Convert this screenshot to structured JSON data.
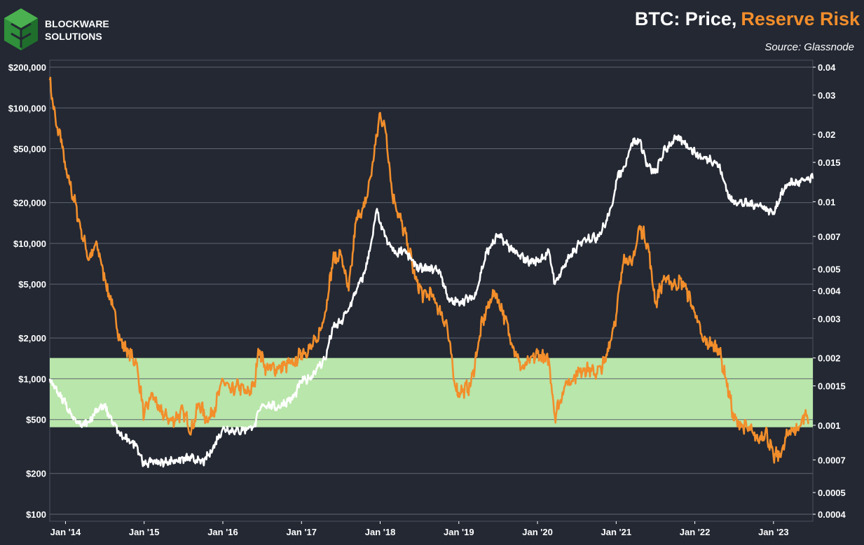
{
  "logo": {
    "line1": "BLOCKWARE",
    "line2": "SOLUTIONS"
  },
  "colors": {
    "background": "#232833",
    "grid": "#5f6571",
    "price": "#ffffff",
    "reserve_risk": "#f28e2b",
    "band": "#b9e6aa"
  },
  "chart_data": {
    "type": "line",
    "title_part1": "BTC: Price,",
    "title_part2": "Reserve Risk",
    "subtitle": "Source: Glassnode",
    "x_tick_labels": [
      "Jan '14",
      "Jan '15",
      "Jan '16",
      "Jan '17",
      "Jan '18",
      "Jan '19",
      "Jan '20",
      "Jan '21",
      "Jan '22",
      "Jan '23"
    ],
    "x_range": [
      2013.8,
      2023.5
    ],
    "left_axis": {
      "scale": "log",
      "range": [
        100,
        200000
      ],
      "ticks": [
        {
          "value": 200000,
          "label": "$200,000"
        },
        {
          "value": 100000,
          "label": "$100,000"
        },
        {
          "value": 50000,
          "label": "$50,000"
        },
        {
          "value": 20000,
          "label": "$20,000"
        },
        {
          "value": 10000,
          "label": "$10,000"
        },
        {
          "value": 5000,
          "label": "$5,000"
        },
        {
          "value": 2000,
          "label": "$2,000"
        },
        {
          "value": 1000,
          "label": "$1,000"
        },
        {
          "value": 500,
          "label": "$500"
        },
        {
          "value": 200,
          "label": "$200"
        },
        {
          "value": 100,
          "label": "$100"
        }
      ]
    },
    "right_axis": {
      "scale": "log",
      "range": [
        0.0004,
        0.04
      ],
      "ticks": [
        {
          "value": 0.04,
          "label": "0.04"
        },
        {
          "value": 0.03,
          "label": "0.03"
        },
        {
          "value": 0.02,
          "label": "0.02"
        },
        {
          "value": 0.015,
          "label": "0.015"
        },
        {
          "value": 0.01,
          "label": "0.01"
        },
        {
          "value": 0.007,
          "label": "0.007"
        },
        {
          "value": 0.005,
          "label": "0.005"
        },
        {
          "value": 0.004,
          "label": "0.004"
        },
        {
          "value": 0.003,
          "label": "0.003"
        },
        {
          "value": 0.002,
          "label": "0.002"
        },
        {
          "value": 0.0015,
          "label": "0.0015"
        },
        {
          "value": 0.001,
          "label": "0.001"
        },
        {
          "value": 0.0007,
          "label": "0.0007"
        },
        {
          "value": 0.0005,
          "label": "0.0005"
        },
        {
          "value": 0.0004,
          "label": "0.0004"
        }
      ]
    },
    "band": {
      "axis": "right",
      "low": 0.00098,
      "high": 0.002
    },
    "series": [
      {
        "key": "price",
        "axis": "left",
        "x": [
          2013.8,
          2013.9,
          2014.0,
          2014.1,
          2014.2,
          2014.3,
          2014.4,
          2014.5,
          2014.6,
          2014.7,
          2014.8,
          2014.9,
          2015.0,
          2015.1,
          2015.2,
          2015.4,
          2015.6,
          2015.75,
          2015.85,
          2016.0,
          2016.2,
          2016.4,
          2016.5,
          2016.7,
          2016.9,
          2017.0,
          2017.1,
          2017.2,
          2017.3,
          2017.4,
          2017.5,
          2017.6,
          2017.7,
          2017.8,
          2017.9,
          2017.96,
          2018.0,
          2018.1,
          2018.2,
          2018.3,
          2018.4,
          2018.5,
          2018.6,
          2018.75,
          2018.88,
          2019.0,
          2019.2,
          2019.35,
          2019.5,
          2019.6,
          2019.75,
          2019.9,
          2020.0,
          2020.15,
          2020.22,
          2020.35,
          2020.5,
          2020.6,
          2020.75,
          2020.85,
          2020.95,
          2021.0,
          2021.1,
          2021.2,
          2021.3,
          2021.4,
          2021.5,
          2021.6,
          2021.75,
          2021.85,
          2022.0,
          2022.1,
          2022.2,
          2022.3,
          2022.45,
          2022.55,
          2022.7,
          2022.85,
          2022.95,
          2023.0,
          2023.1,
          2023.2,
          2023.3,
          2023.4,
          2023.5
        ],
        "y": [
          1000,
          800,
          650,
          500,
          450,
          480,
          600,
          620,
          480,
          380,
          350,
          330,
          230,
          250,
          240,
          250,
          260,
          240,
          290,
          430,
          410,
          450,
          650,
          620,
          730,
          960,
          1000,
          1200,
          1400,
          2400,
          2600,
          3300,
          4500,
          6000,
          11000,
          18000,
          14000,
          10000,
          8500,
          9000,
          7500,
          6500,
          6500,
          6400,
          3700,
          3700,
          4000,
          8500,
          11500,
          10000,
          8200,
          7300,
          7500,
          8500,
          5000,
          7000,
          9300,
          11000,
          11000,
          13500,
          19000,
          29000,
          37000,
          55000,
          58000,
          37000,
          33000,
          47000,
          60000,
          57000,
          47000,
          42000,
          42000,
          38000,
          21000,
          20000,
          19500,
          19000,
          17000,
          17000,
          23000,
          28000,
          28000,
          29000,
          30000
        ]
      },
      {
        "key": "reserve_risk",
        "axis": "right",
        "x": [
          2013.8,
          2013.88,
          2013.95,
          2014.0,
          2014.1,
          2014.2,
          2014.3,
          2014.4,
          2014.5,
          2014.6,
          2014.7,
          2014.8,
          2014.9,
          2015.0,
          2015.1,
          2015.2,
          2015.35,
          2015.5,
          2015.6,
          2015.7,
          2015.8,
          2015.9,
          2016.0,
          2016.1,
          2016.2,
          2016.3,
          2016.4,
          2016.45,
          2016.55,
          2016.7,
          2016.9,
          2017.0,
          2017.1,
          2017.2,
          2017.3,
          2017.4,
          2017.5,
          2017.6,
          2017.7,
          2017.8,
          2017.88,
          2017.94,
          2018.0,
          2018.08,
          2018.15,
          2018.25,
          2018.35,
          2018.45,
          2018.55,
          2018.65,
          2018.75,
          2018.85,
          2018.95,
          2019.0,
          2019.15,
          2019.3,
          2019.45,
          2019.55,
          2019.7,
          2019.8,
          2019.9,
          2020.0,
          2020.15,
          2020.22,
          2020.35,
          2020.5,
          2020.6,
          2020.75,
          2020.85,
          2020.95,
          2021.0,
          2021.1,
          2021.2,
          2021.3,
          2021.4,
          2021.5,
          2021.6,
          2021.75,
          2021.85,
          2022.0,
          2022.1,
          2022.2,
          2022.3,
          2022.4,
          2022.5,
          2022.6,
          2022.7,
          2022.8,
          2022.9,
          2023.0,
          2023.1,
          2023.2,
          2023.3,
          2023.4,
          2023.45
        ],
        "y": [
          0.035,
          0.022,
          0.019,
          0.014,
          0.0105,
          0.0075,
          0.0055,
          0.0065,
          0.0045,
          0.0034,
          0.0024,
          0.0021,
          0.0019,
          0.0011,
          0.0014,
          0.00115,
          0.00105,
          0.00115,
          0.00095,
          0.00125,
          0.00105,
          0.0012,
          0.0016,
          0.0014,
          0.0015,
          0.0014,
          0.0015,
          0.0022,
          0.0018,
          0.0018,
          0.0019,
          0.0021,
          0.0022,
          0.0024,
          0.0032,
          0.0055,
          0.0058,
          0.004,
          0.0085,
          0.0095,
          0.013,
          0.018,
          0.025,
          0.02,
          0.011,
          0.0085,
          0.0065,
          0.0045,
          0.0038,
          0.0039,
          0.0033,
          0.0028,
          0.0015,
          0.0014,
          0.0015,
          0.0029,
          0.004,
          0.0033,
          0.0022,
          0.0018,
          0.0019,
          0.0021,
          0.0019,
          0.0011,
          0.0015,
          0.0017,
          0.0018,
          0.0017,
          0.0019,
          0.0026,
          0.0031,
          0.0058,
          0.0052,
          0.0078,
          0.0065,
          0.0035,
          0.0045,
          0.0043,
          0.0044,
          0.0032,
          0.0024,
          0.0023,
          0.0022,
          0.0016,
          0.00105,
          0.001,
          0.00095,
          0.00085,
          0.00095,
          0.00072,
          0.00075,
          0.00095,
          0.00095,
          0.00112,
          0.00102
        ]
      }
    ]
  }
}
